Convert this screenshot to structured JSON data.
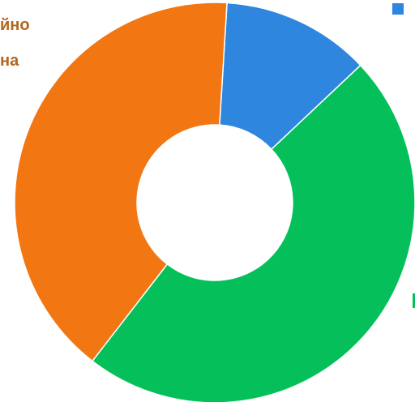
{
  "chart_data": {
    "type": "pie",
    "donut": true,
    "start_angle_deg": 3.5,
    "series": [
      {
        "value": 12.0,
        "color": "#2e86de"
      },
      {
        "value": 47.5,
        "color": "#05c05a"
      },
      {
        "value": 40.5,
        "color": "#f27612"
      }
    ],
    "partial_labels": [
      "йно",
      "на"
    ],
    "legend": {
      "placement": "right",
      "colors": [
        "#2e86de",
        "#05c05a"
      ]
    }
  }
}
